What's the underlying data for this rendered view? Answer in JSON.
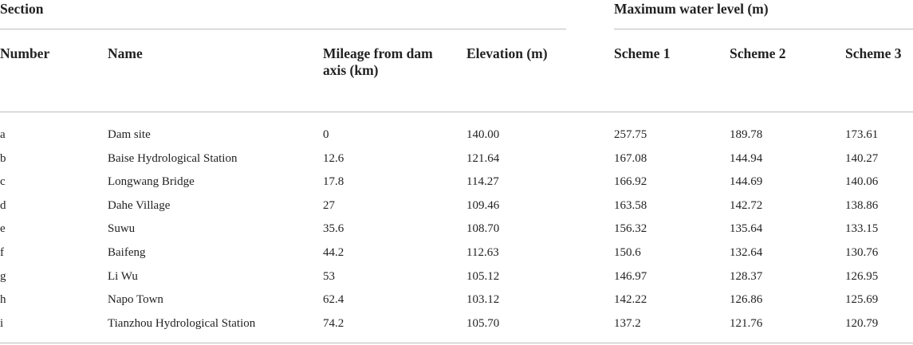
{
  "table": {
    "group_headers": {
      "section": "Section",
      "max_water_level": "Maximum water level (m)"
    },
    "columns": {
      "number": "Number",
      "name": "Name",
      "mileage": "Mileage from dam axis (km)",
      "elevation": "Elevation (m)",
      "scheme1": "Scheme 1",
      "scheme2": "Scheme 2",
      "scheme3": "Scheme 3"
    },
    "rows": [
      {
        "number": "a",
        "name": "Dam site",
        "mileage": "0",
        "elevation": "140.00",
        "scheme1": "257.75",
        "scheme2": "189.78",
        "scheme3": "173.61"
      },
      {
        "number": "b",
        "name": "Baise Hydrological Station",
        "mileage": "12.6",
        "elevation": "121.64",
        "scheme1": "167.08",
        "scheme2": "144.94",
        "scheme3": "140.27"
      },
      {
        "number": "c",
        "name": "Longwang Bridge",
        "mileage": "17.8",
        "elevation": "114.27",
        "scheme1": "166.92",
        "scheme2": "144.69",
        "scheme3": "140.06"
      },
      {
        "number": "d",
        "name": "Dahe Village",
        "mileage": "27",
        "elevation": "109.46",
        "scheme1": "163.58",
        "scheme2": "142.72",
        "scheme3": "138.86"
      },
      {
        "number": "e",
        "name": "Suwu",
        "mileage": "35.6",
        "elevation": "108.70",
        "scheme1": "156.32",
        "scheme2": "135.64",
        "scheme3": "133.15"
      },
      {
        "number": "f",
        "name": "Baifeng",
        "mileage": "44.2",
        "elevation": "112.63",
        "scheme1": "150.6",
        "scheme2": "132.64",
        "scheme3": "130.76"
      },
      {
        "number": "g",
        "name": "Li Wu",
        "mileage": "53",
        "elevation": "105.12",
        "scheme1": "146.97",
        "scheme2": "128.37",
        "scheme3": "126.95"
      },
      {
        "number": "h",
        "name": "Napo Town",
        "mileage": "62.4",
        "elevation": "103.12",
        "scheme1": "142.22",
        "scheme2": "126.86",
        "scheme3": "125.69"
      },
      {
        "number": "i",
        "name": "Tianzhou Hydrological Station",
        "mileage": "74.2",
        "elevation": "105.70",
        "scheme1": "137.2",
        "scheme2": "121.76",
        "scheme3": "120.79"
      }
    ]
  }
}
